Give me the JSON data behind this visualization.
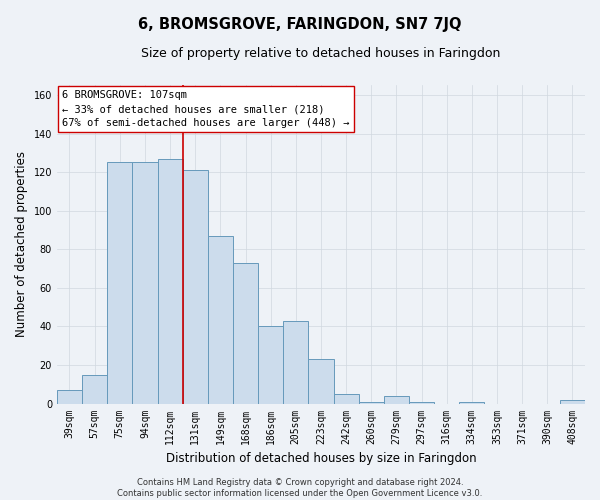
{
  "title": "6, BROMSGROVE, FARINGDON, SN7 7JQ",
  "subtitle": "Size of property relative to detached houses in Faringdon",
  "xlabel": "Distribution of detached houses by size in Faringdon",
  "ylabel": "Number of detached properties",
  "categories": [
    "39sqm",
    "57sqm",
    "75sqm",
    "94sqm",
    "112sqm",
    "131sqm",
    "149sqm",
    "168sqm",
    "186sqm",
    "205sqm",
    "223sqm",
    "242sqm",
    "260sqm",
    "279sqm",
    "297sqm",
    "316sqm",
    "334sqm",
    "353sqm",
    "371sqm",
    "390sqm",
    "408sqm"
  ],
  "values": [
    7,
    15,
    125,
    125,
    127,
    121,
    87,
    73,
    40,
    43,
    23,
    5,
    1,
    4,
    1,
    0,
    1,
    0,
    0,
    0,
    2
  ],
  "bar_color": "#ccdcec",
  "bar_edge_color": "#6699bb",
  "vline_x_index": 4,
  "vline_color": "#cc0000",
  "ylim": [
    0,
    165
  ],
  "yticks": [
    0,
    20,
    40,
    60,
    80,
    100,
    120,
    140,
    160
  ],
  "annotation_line1": "6 BROMSGROVE: 107sqm",
  "annotation_line2": "← 33% of detached houses are smaller (218)",
  "annotation_line3": "67% of semi-detached houses are larger (448) →",
  "footer_text": "Contains HM Land Registry data © Crown copyright and database right 2024.\nContains public sector information licensed under the Open Government Licence v3.0.",
  "bg_color": "#eef2f7",
  "plot_bg_color": "#eef2f7",
  "grid_color": "#d0d8e0",
  "title_fontsize": 10.5,
  "subtitle_fontsize": 9,
  "tick_fontsize": 7,
  "ylabel_fontsize": 8.5,
  "xlabel_fontsize": 8.5,
  "annotation_fontsize": 7.5,
  "footer_fontsize": 6
}
